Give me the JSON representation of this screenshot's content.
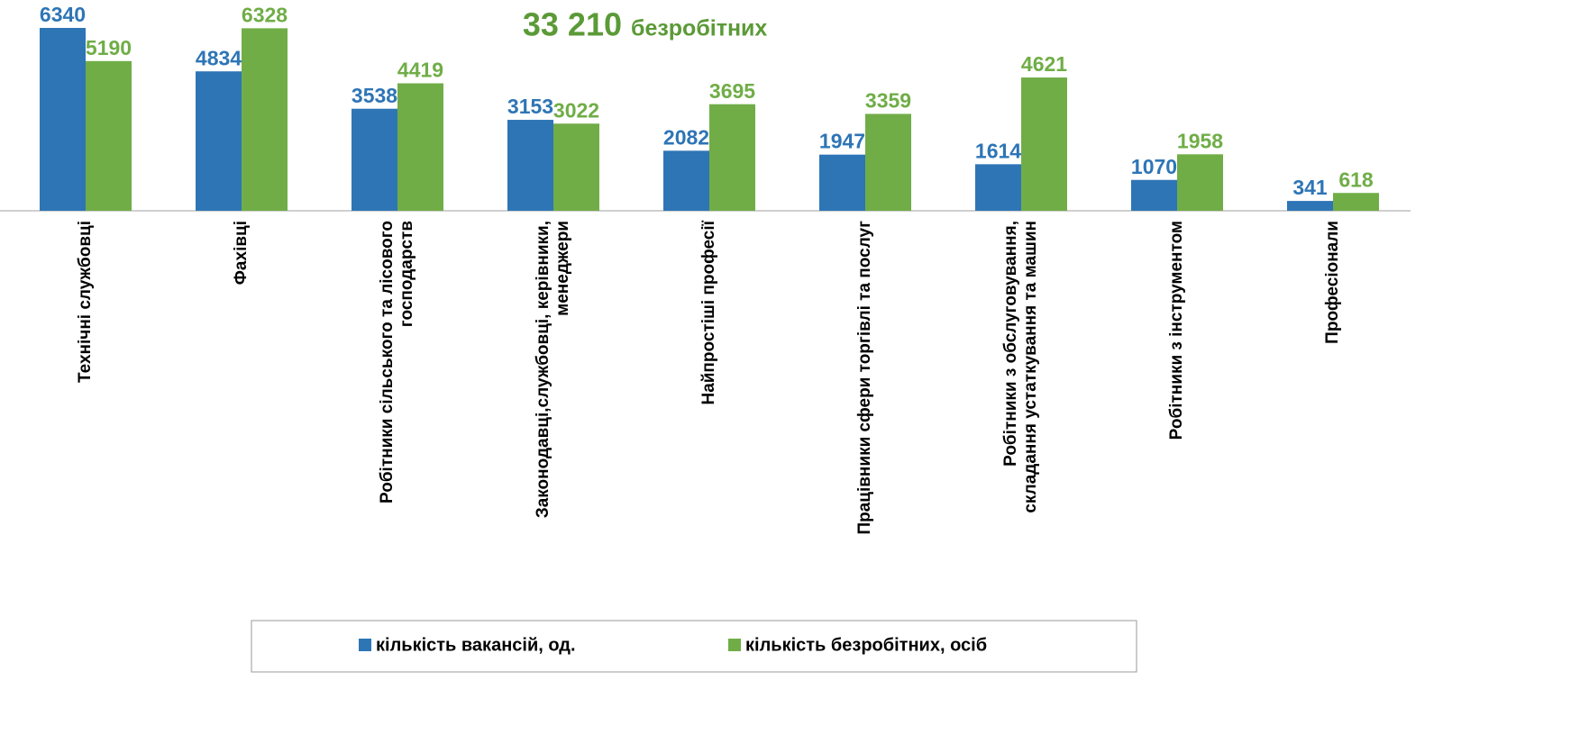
{
  "chart_data": {
    "type": "bar",
    "title": "33 210",
    "subtitle": "безробітних",
    "categories": [
      "Технічні службовці",
      "Фахівці",
      "Робітники сільського та лісового\nгосподарств",
      "Законодавці,службовці, керівники,\nменеджери",
      "Найпростіші професії",
      "Працівники сфери торгівлі та послуг",
      "Робітники з обслуговування,\nскладання устаткування та машин",
      "Робітники з інструментом",
      "Професіонали"
    ],
    "series": [
      {
        "name": "кількість вакансій, од.",
        "color": "#2e75b6",
        "values": [
          6340,
          4834,
          3538,
          3153,
          2082,
          1947,
          1614,
          1070,
          341
        ]
      },
      {
        "name": "кількість безробітних, осіб",
        "color": "#70ad47",
        "values": [
          5190,
          6328,
          4419,
          3022,
          3695,
          3359,
          4621,
          1958,
          618
        ]
      }
    ],
    "legend": "bottom"
  }
}
